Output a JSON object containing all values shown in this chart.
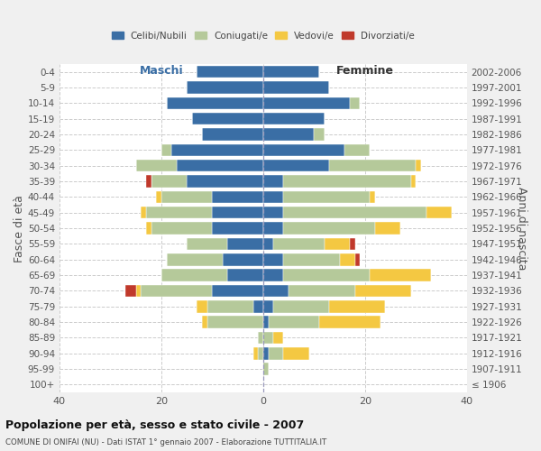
{
  "age_groups": [
    "0-4",
    "5-9",
    "10-14",
    "15-19",
    "20-24",
    "25-29",
    "30-34",
    "35-39",
    "40-44",
    "45-49",
    "50-54",
    "55-59",
    "60-64",
    "65-69",
    "70-74",
    "75-79",
    "80-84",
    "85-89",
    "90-94",
    "95-99",
    "100+"
  ],
  "birth_years": [
    "2002-2006",
    "1997-2001",
    "1992-1996",
    "1987-1991",
    "1982-1986",
    "1977-1981",
    "1972-1976",
    "1967-1971",
    "1962-1966",
    "1957-1961",
    "1952-1956",
    "1947-1951",
    "1942-1946",
    "1937-1941",
    "1932-1936",
    "1927-1931",
    "1922-1926",
    "1917-1921",
    "1912-1916",
    "1907-1911",
    "≤ 1906"
  ],
  "male": {
    "celibi": [
      13,
      15,
      19,
      14,
      12,
      18,
      17,
      15,
      10,
      10,
      10,
      7,
      8,
      7,
      10,
      2,
      0,
      0,
      0,
      0,
      0
    ],
    "coniugati": [
      0,
      0,
      0,
      0,
      0,
      2,
      8,
      7,
      10,
      13,
      12,
      8,
      11,
      13,
      14,
      9,
      11,
      1,
      1,
      0,
      0
    ],
    "vedovi": [
      0,
      0,
      0,
      0,
      0,
      0,
      0,
      0,
      1,
      1,
      1,
      0,
      0,
      0,
      1,
      2,
      1,
      0,
      1,
      0,
      0
    ],
    "divorziati": [
      0,
      0,
      0,
      0,
      0,
      0,
      0,
      1,
      0,
      0,
      0,
      0,
      0,
      0,
      2,
      0,
      0,
      0,
      0,
      0,
      0
    ]
  },
  "female": {
    "nubili": [
      11,
      13,
      17,
      12,
      10,
      16,
      13,
      4,
      4,
      4,
      4,
      2,
      4,
      4,
      5,
      2,
      1,
      0,
      1,
      0,
      0
    ],
    "coniugate": [
      0,
      0,
      2,
      0,
      2,
      5,
      17,
      25,
      17,
      28,
      18,
      10,
      11,
      17,
      13,
      11,
      10,
      2,
      3,
      1,
      0
    ],
    "vedove": [
      0,
      0,
      0,
      0,
      0,
      0,
      1,
      1,
      1,
      5,
      5,
      5,
      3,
      12,
      11,
      11,
      12,
      2,
      5,
      0,
      0
    ],
    "divorziate": [
      0,
      0,
      0,
      0,
      0,
      0,
      0,
      0,
      0,
      0,
      0,
      1,
      1,
      0,
      0,
      0,
      0,
      0,
      0,
      0,
      0
    ]
  },
  "colors": {
    "celibi": "#3a6ea5",
    "coniugati": "#b5c99a",
    "vedovi": "#f4c842",
    "divorziati": "#c0392b"
  },
  "title": "Popolazione per età, sesso e stato civile - 2007",
  "subtitle": "COMUNE DI ONIFAI (NU) - Dati ISTAT 1° gennaio 2007 - Elaborazione TUTTITALIA.IT",
  "ylabel_left": "Fasce di età",
  "ylabel_right": "Anni di nascita",
  "xlabel_left": "Maschi",
  "xlabel_right": "Femmine",
  "xlim": 40,
  "bg_color": "#f0f0f0",
  "plot_bg": "#ffffff"
}
